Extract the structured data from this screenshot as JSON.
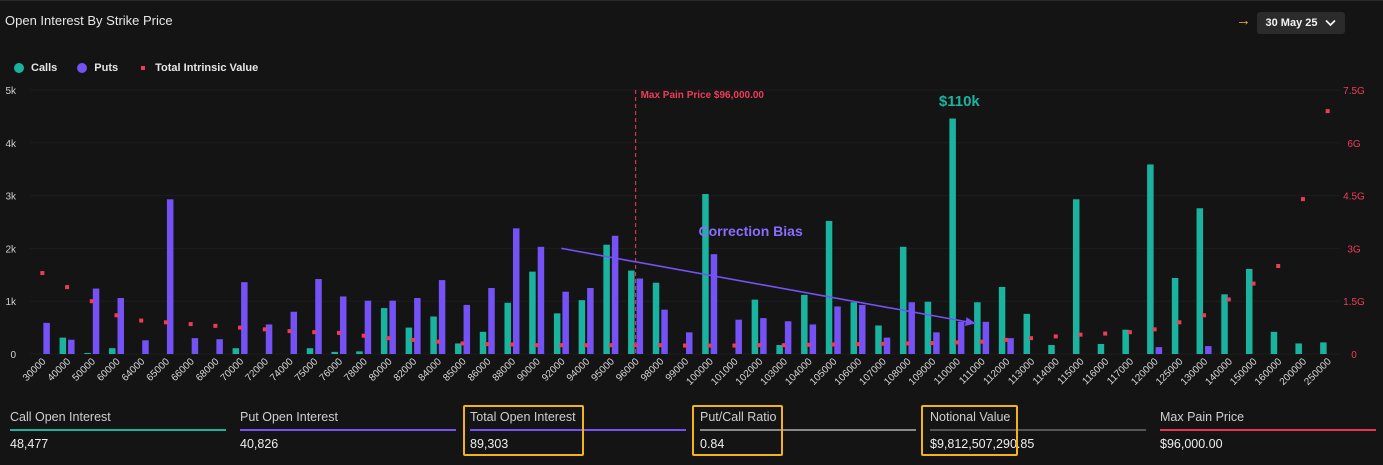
{
  "header": {
    "title": "Open Interest By Strike Price",
    "date_label": "30 May 25"
  },
  "legend": [
    {
      "label": "Calls",
      "color": "#19b3a0"
    },
    {
      "label": "Puts",
      "color": "#7452f5"
    },
    {
      "label": "Total Intrinsic Value",
      "color": "#ee3c58"
    }
  ],
  "chart_data": {
    "type": "bar",
    "categories": [
      "30000",
      "40000",
      "50000",
      "60000",
      "64000",
      "65000",
      "66000",
      "68000",
      "70000",
      "72000",
      "74000",
      "75000",
      "76000",
      "78000",
      "80000",
      "82000",
      "84000",
      "85000",
      "86000",
      "88000",
      "90000",
      "92000",
      "94000",
      "95000",
      "96000",
      "98000",
      "99000",
      "100000",
      "101000",
      "102000",
      "103000",
      "104000",
      "105000",
      "106000",
      "107000",
      "108000",
      "109000",
      "110000",
      "111000",
      "112000",
      "113000",
      "114000",
      "115000",
      "116000",
      "117000",
      "120000",
      "125000",
      "130000",
      "140000",
      "150000",
      "160000",
      "200000",
      "250000"
    ],
    "series": [
      {
        "name": "Calls",
        "axis": "left",
        "values": [
          0,
          310,
          20,
          110,
          0,
          0,
          0,
          0,
          110,
          0,
          0,
          110,
          40,
          50,
          870,
          500,
          710,
          200,
          420,
          970,
          1560,
          770,
          1020,
          2070,
          1580,
          1350,
          0,
          3030,
          0,
          1030,
          170,
          1120,
          2520,
          980,
          540,
          2030,
          990,
          4460,
          980,
          1270,
          760,
          170,
          2930,
          190,
          460,
          3590,
          1440,
          2760,
          1130,
          1610,
          420,
          200,
          220
        ]
      },
      {
        "name": "Puts",
        "axis": "left",
        "values": [
          590,
          270,
          1240,
          1060,
          260,
          2930,
          300,
          280,
          1360,
          560,
          800,
          1420,
          1090,
          1010,
          1010,
          1060,
          1400,
          930,
          1250,
          2380,
          2030,
          1180,
          1250,
          2240,
          1430,
          840,
          410,
          1890,
          650,
          680,
          620,
          560,
          900,
          930,
          310,
          980,
          410,
          610,
          610,
          300,
          0,
          0,
          0,
          0,
          0,
          130,
          0,
          150,
          0,
          0,
          0,
          0,
          0
        ]
      },
      {
        "name": "Total Intrinsic Value",
        "axis": "right",
        "values": [
          2.3,
          1.9,
          1.5,
          1.1,
          0.95,
          0.9,
          0.85,
          0.8,
          0.75,
          0.7,
          0.65,
          0.62,
          0.6,
          0.52,
          0.45,
          0.4,
          0.35,
          0.3,
          0.28,
          0.27,
          0.25,
          0.25,
          0.25,
          0.25,
          0.25,
          0.25,
          0.24,
          0.24,
          0.24,
          0.25,
          0.25,
          0.26,
          0.27,
          0.28,
          0.29,
          0.3,
          0.31,
          0.33,
          0.35,
          0.4,
          0.45,
          0.5,
          0.55,
          0.58,
          0.62,
          0.7,
          0.9,
          1.1,
          1.55,
          2.0,
          2.5,
          4.4,
          6.9
        ]
      }
    ],
    "y_left": {
      "min": 0,
      "max": 5000,
      "ticks": [
        "0",
        "1k",
        "2k",
        "3k",
        "4k",
        "5k"
      ]
    },
    "y_right": {
      "min": 0,
      "max": 7.5,
      "ticks": [
        "0",
        "1.5G",
        "3G",
        "4.5G",
        "6G",
        "7.5G"
      ]
    },
    "annotations": {
      "max_pain": {
        "label": "Max Pain Price $96,000.00",
        "at_category": "96000"
      },
      "peak": {
        "label": "$110k",
        "at_category": "110000"
      },
      "trend": {
        "label": "Correction Bias",
        "from_category": "92000",
        "from_value": 2000,
        "to_category": "111000",
        "to_value": 580
      }
    }
  },
  "stats": [
    {
      "label": "Call Open Interest",
      "value": "48,477",
      "color": "#19b3a0",
      "highlight": false
    },
    {
      "label": "Put Open Interest",
      "value": "40,826",
      "color": "#7452f5",
      "highlight": false
    },
    {
      "label": "Total Open Interest",
      "value": "89,303",
      "color": "#7452f5",
      "highlight": true
    },
    {
      "label": "Put/Call Ratio",
      "value": "0.84",
      "color": "#8a8a8a",
      "highlight": true
    },
    {
      "label": "Notional Value",
      "value": "$9,812,507,290.85",
      "color": "#555555",
      "highlight": true
    },
    {
      "label": "Max Pain Price",
      "value": "$96,000.00",
      "color": "#e8344e",
      "highlight": false
    }
  ],
  "colors": {
    "calls": "#19b3a0",
    "puts": "#7452f5",
    "intrinsic": "#ee3c58",
    "highlight": "#f2b31c"
  }
}
